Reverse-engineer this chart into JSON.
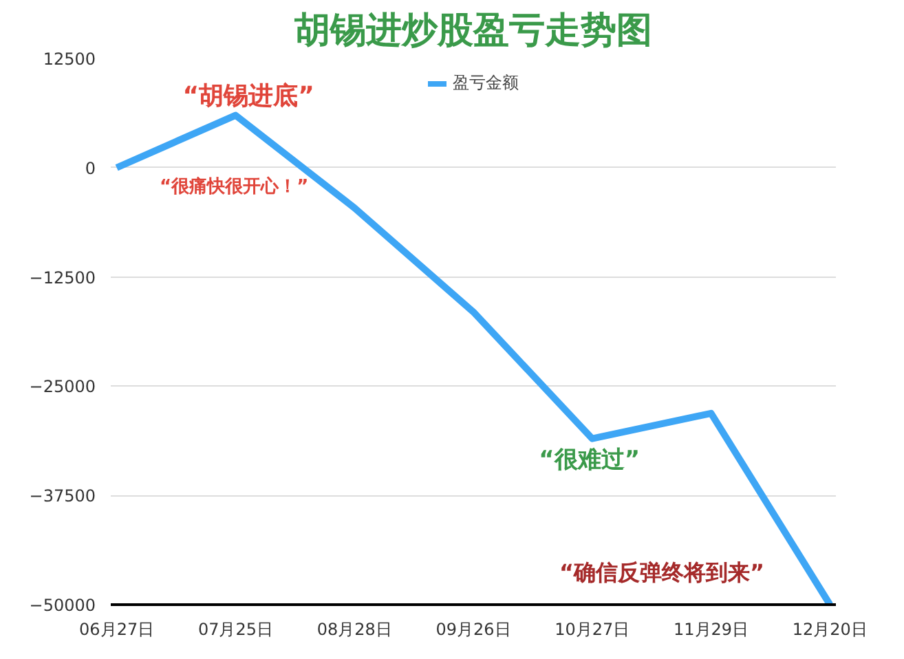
{
  "chart_data": {
    "type": "line",
    "title": "胡锡进炒股盈亏走势图",
    "categories": [
      "06月27日",
      "07月25日",
      "08月28日",
      "09月26日",
      "10月27日",
      "11月29日",
      "12月20日"
    ],
    "series": [
      {
        "name": "盈亏金额",
        "color": "#3ea6f5",
        "values": [
          0,
          6000,
          -4600,
          -16500,
          -31000,
          -28100,
          -50000
        ]
      }
    ],
    "ylim": [
      -50000,
      12500
    ],
    "yticks": [
      -50000,
      -37500,
      -25000,
      -12500,
      0,
      12500
    ],
    "grid": "y",
    "legend": "top",
    "marker": "none",
    "line_style": "solid",
    "annotations": [
      "“胡锡进底”",
      "“很痛快很开心！”",
      "“很难过”",
      "“确信反弹终将到来”"
    ]
  }
}
